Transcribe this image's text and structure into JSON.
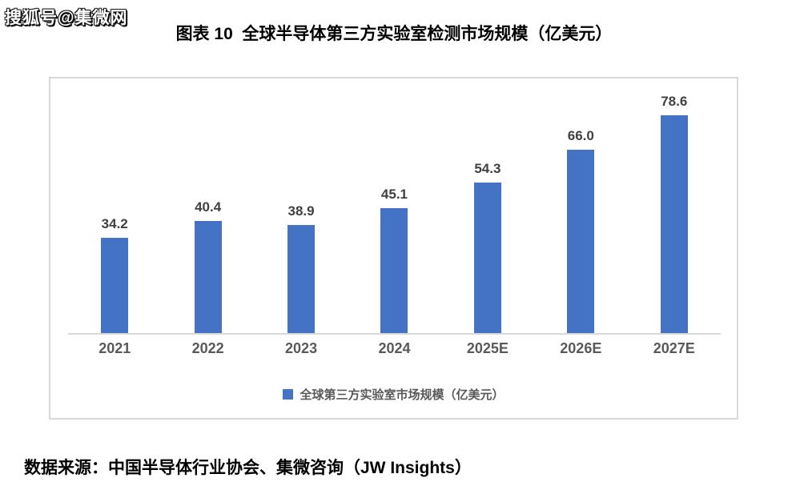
{
  "watermark": "搜狐号@集微网",
  "title": "图表 10  全球半导体第三方实验室检测市场规模（亿美元）",
  "source": "数据来源：中国半导体行业协会、集微咨询（JW Insights）",
  "legend": {
    "label": "全球第三方实验室市场规模（亿美元）",
    "marker_color": "#4472C4"
  },
  "colors": {
    "bar": "#4472C4",
    "axis_line": "#D9D9D9",
    "frame_border": "#D9D9D9",
    "value_label": "#404040",
    "tick_label": "#595959"
  },
  "chart_data": {
    "type": "bar",
    "categories": [
      "2021",
      "2022",
      "2023",
      "2024",
      "2025E",
      "2026E",
      "2027E"
    ],
    "values": [
      34.2,
      40.4,
      38.9,
      45.1,
      54.3,
      66.0,
      78.6
    ],
    "title": "图表 10  全球半导体第三方实验室检测市场规模（亿美元）",
    "xlabel": "",
    "ylabel": "",
    "ylim": [
      0,
      90
    ],
    "grid": false,
    "y_axis_visible": false,
    "value_labels": true,
    "value_label_decimals": 1,
    "legend_entries": [
      "全球第三方实验室市场规模（亿美元）"
    ],
    "legend_position": "bottom"
  }
}
